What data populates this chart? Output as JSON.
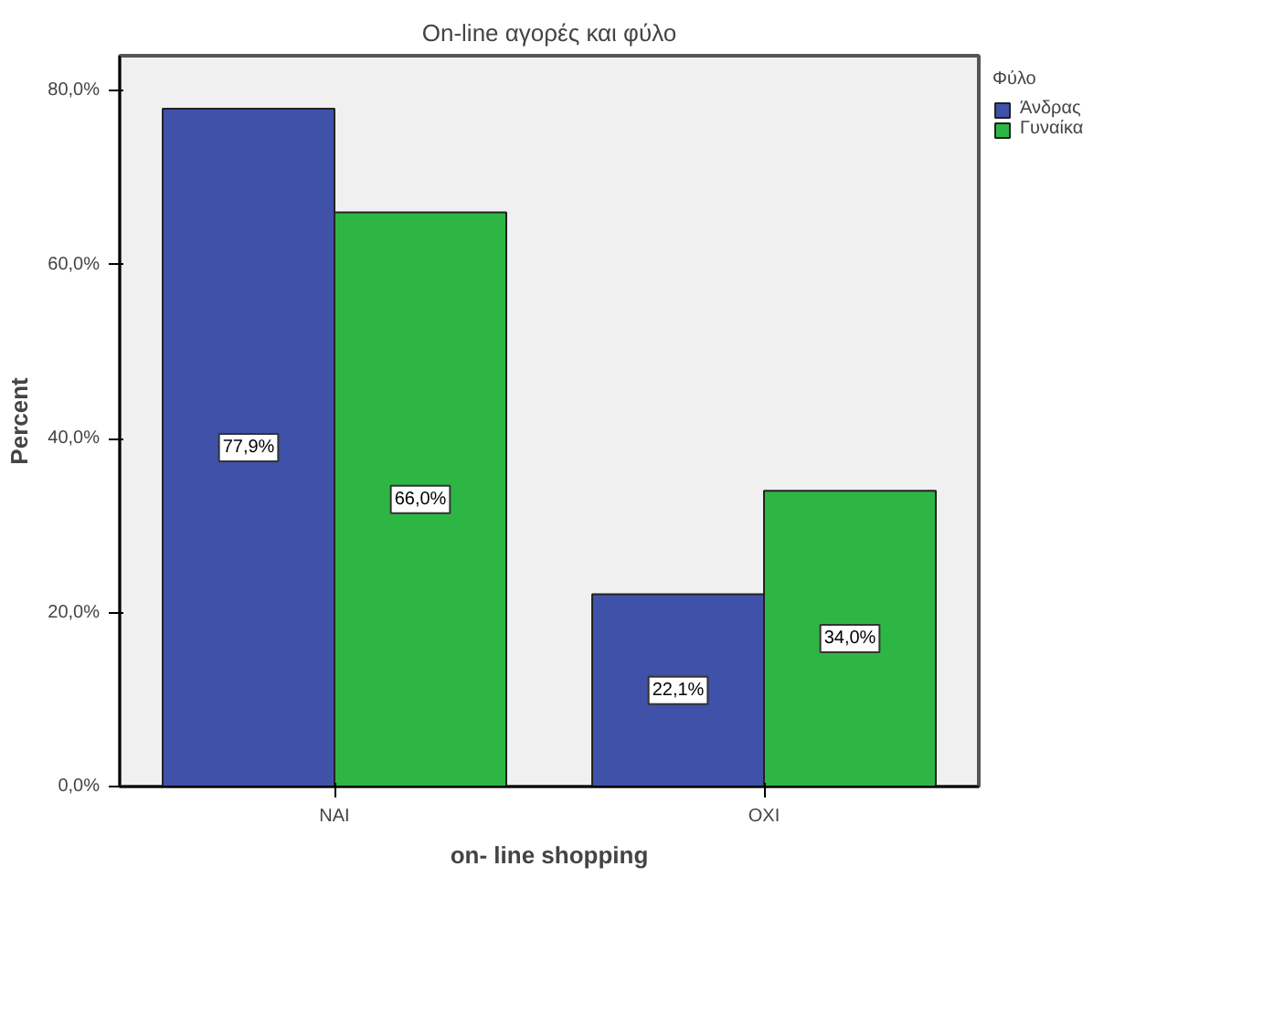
{
  "chart_data": {
    "type": "bar",
    "title": "On-line αγορές και φύλο",
    "xlabel": "on- line shopping",
    "ylabel": "Percent",
    "legend_title": "Φύλο",
    "categories": [
      "ΝΑΙ",
      "ΟΧΙ"
    ],
    "series": [
      {
        "name": "Άνδρας",
        "color": "#3f51a8",
        "values": [
          77.9,
          22.1
        ],
        "value_labels": [
          "77,9%",
          "22,1%"
        ]
      },
      {
        "name": "Γυναίκα",
        "color": "#2eb645",
        "values": [
          66.0,
          34.0
        ],
        "value_labels": [
          "66,0%",
          "34,0%"
        ]
      }
    ],
    "ylim": [
      0,
      84
    ],
    "yticks": [
      {
        "value": 0,
        "label": "0,0%"
      },
      {
        "value": 20,
        "label": "20,0%"
      },
      {
        "value": 40,
        "label": "40,0%"
      },
      {
        "value": 60,
        "label": "60,0%"
      },
      {
        "value": 80,
        "label": "80,0%"
      }
    ],
    "grid": false,
    "legend": "right"
  }
}
